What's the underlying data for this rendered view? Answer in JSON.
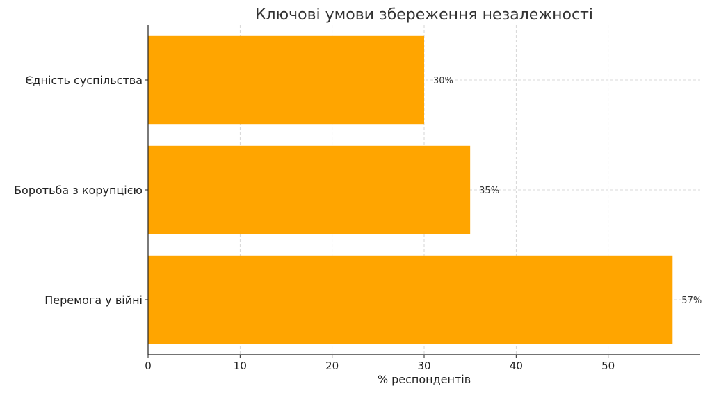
{
  "chart_data": {
    "type": "bar",
    "orientation": "horizontal",
    "title": "Ключові умови збереження незалежності",
    "xlabel": "% респондентів",
    "ylabel": "",
    "categories": [
      "Єдність суспільства",
      "Боротьба з корупцією",
      "Перемога у війні"
    ],
    "values": [
      30,
      35,
      57
    ],
    "data_labels": [
      "30%",
      "35%",
      "57%"
    ],
    "xlim": [
      0,
      60
    ],
    "xticks": [
      0,
      10,
      20,
      30,
      40,
      50
    ],
    "xtick_labels": [
      "0",
      "10",
      "20",
      "30",
      "40",
      "50"
    ],
    "grid": true,
    "bar_color": "#FFA500"
  }
}
